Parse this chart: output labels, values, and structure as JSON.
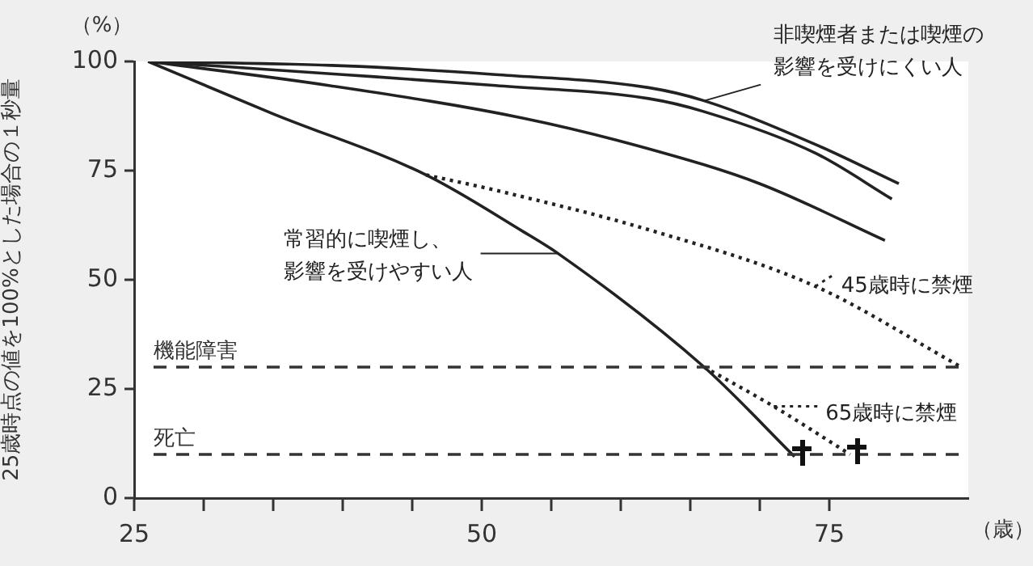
{
  "chart_data": {
    "type": "line",
    "ylabel": "25歳時点の値を100%とした場合の１秒量",
    "xlabel": "（歳）",
    "annotations": [
      "（%）"
    ],
    "xlim": [
      25,
      85
    ],
    "ylim": [
      0,
      100
    ],
    "xticks": [
      25,
      {
        "value": 30,
        "label": null
      },
      {
        "value": 35,
        "label": null
      },
      {
        "value": 40,
        "label": null
      },
      {
        "value": 45,
        "label": null
      },
      50,
      {
        "value": 55,
        "label": null
      },
      {
        "value": 60,
        "label": null
      },
      {
        "value": 65,
        "label": null
      },
      {
        "value": 70,
        "label": null
      },
      75
    ],
    "yticks": [
      0,
      25,
      50,
      75,
      100
    ],
    "marker": "none",
    "legend": "right",
    "series": [
      {
        "name": "非喫煙者または喫煙の影響を受けにくい人",
        "color": "#222222",
        "line_style": "solid",
        "x": [
          26,
          40,
          51,
          62,
          66,
          74,
          80
        ],
        "values": [
          100,
          99,
          97,
          94,
          91,
          81,
          72
        ]
      },
      {
        "color": "#222222",
        "line_style": "solid",
        "x": [
          26,
          40,
          51,
          62,
          66,
          74,
          79.5
        ],
        "values": [
          100,
          97,
          94.5,
          91.5,
          88.5,
          79,
          68.5
        ]
      },
      {
        "color": "#222222",
        "line_style": "solid",
        "x": [
          26,
          39,
          53,
          62,
          70,
          79
        ],
        "values": [
          100,
          94.5,
          87,
          80,
          72,
          59
        ]
      },
      {
        "name": "常習的に喫煙し、影響を受けやすい人",
        "color": "#222222",
        "line_style": "solid",
        "x": [
          26,
          35,
          46,
          53,
          55.5,
          66,
          72.5
        ],
        "values": [
          100,
          88,
          74,
          61,
          56,
          30,
          9.5
        ]
      },
      {
        "name": "45歳時に禁煙",
        "color": "#222222",
        "line_style": "dotted",
        "x": [
          46,
          51,
          62.5,
          74,
          84.5
        ],
        "values": [
          74,
          70.5,
          61,
          48.5,
          30
        ]
      },
      {
        "name": "65歳時に禁煙",
        "color": "#222222",
        "line_style": "dotted",
        "x": [
          66,
          71,
          76.5
        ],
        "values": [
          30,
          21,
          10
        ]
      }
    ],
    "ref_lines": [
      {
        "axis": "y",
        "value": 30,
        "label": "機能障害",
        "color": "#333333",
        "line_style": "dashed"
      },
      {
        "axis": "y",
        "value": 10,
        "label": "死亡",
        "color": "#333333",
        "line_style": "dashed"
      }
    ]
  }
}
